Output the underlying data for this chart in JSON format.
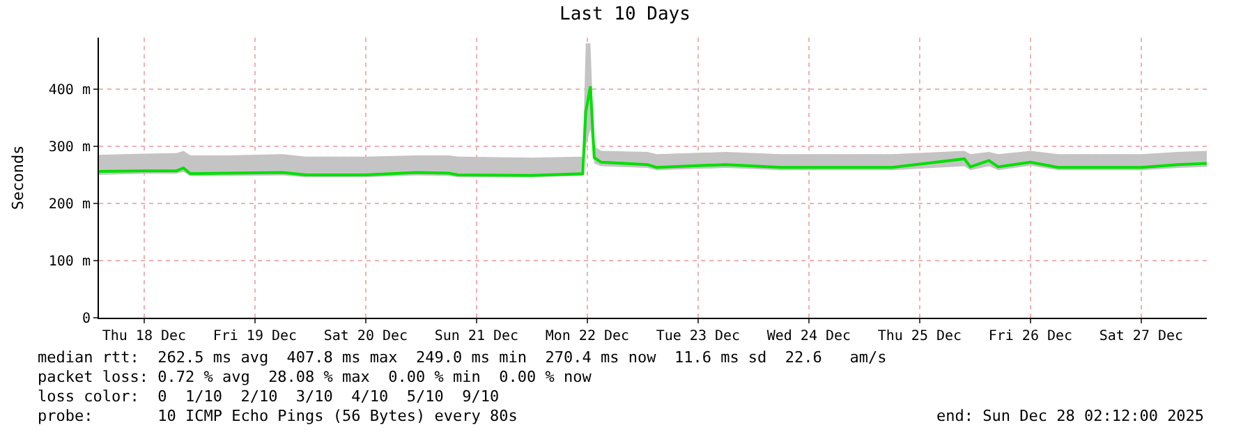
{
  "chart_data": {
    "type": "line",
    "title": "Last 10 Days",
    "ylabel": "Seconds",
    "x": [
      "2025-12-18T02:12",
      "2025-12-18T12:00",
      "2025-12-18T19:00",
      "2025-12-18T20:30",
      "2025-12-18T22:00",
      "2025-12-19T06:00",
      "2025-12-19T18:00",
      "2025-12-19T23:00",
      "2025-12-20T12:00",
      "2025-12-20T23:00",
      "2025-12-21T06:00",
      "2025-12-21T08:00",
      "2025-12-22T00:00",
      "2025-12-22T11:00",
      "2025-12-22T11:40",
      "2025-12-22T12:40",
      "2025-12-22T13:30",
      "2025-12-22T15:00",
      "2025-12-23T01:00",
      "2025-12-23T03:00",
      "2025-12-23T18:00",
      "2025-12-24T06:00",
      "2025-12-25T06:00",
      "2025-12-25T21:40",
      "2025-12-25T23:00",
      "2025-12-26T03:00",
      "2025-12-26T05:00",
      "2025-12-26T12:00",
      "2025-12-26T18:00",
      "2025-12-27T12:00",
      "2025-12-27T20:00",
      "2025-12-28T02:12"
    ],
    "series": [
      {
        "color": "#00e000",
        "values": [
          256,
          257,
          257,
          262,
          252,
          253,
          254,
          250,
          250,
          254,
          253,
          250,
          249,
          252,
          360,
          405,
          280,
          272,
          268,
          263,
          268,
          263,
          263,
          278,
          264,
          275,
          264,
          272,
          263,
          263,
          268,
          270
        ],
        "lower": [
          250,
          252,
          252,
          255,
          248,
          248,
          249,
          246,
          246,
          249,
          248,
          246,
          246,
          248,
          300,
          330,
          270,
          265,
          262,
          258,
          262,
          258,
          258,
          265,
          258,
          265,
          258,
          266,
          258,
          258,
          262,
          264
        ],
        "upper": [
          285,
          287,
          288,
          292,
          284,
          284,
          286,
          282,
          282,
          284,
          284,
          282,
          280,
          282,
          480,
          480,
          300,
          292,
          290,
          286,
          290,
          286,
          286,
          292,
          286,
          290,
          286,
          292,
          286,
          286,
          290,
          292
        ]
      }
    ],
    "ylim": [
      0,
      490
    ],
    "yticks": [
      0,
      {
        "value": 100,
        "label": "100 m"
      },
      {
        "value": 200,
        "label": "200 m"
      },
      {
        "value": 300,
        "label": "300 m"
      },
      {
        "value": 400,
        "label": "400 m"
      }
    ],
    "xlim": [
      "2025-12-18T02:12",
      "2025-12-28T02:12"
    ],
    "xticks": [
      {
        "value": "2025-12-18T12:00",
        "label": "Thu 18 Dec"
      },
      {
        "value": "2025-12-19T12:00",
        "label": "Fri 19 Dec"
      },
      {
        "value": "2025-12-20T12:00",
        "label": "Sat 20 Dec"
      },
      {
        "value": "2025-12-21T12:00",
        "label": "Sun 21 Dec"
      },
      {
        "value": "2025-12-22T12:00",
        "label": "Mon 22 Dec"
      },
      {
        "value": "2025-12-23T12:00",
        "label": "Tue 23 Dec"
      },
      {
        "value": "2025-12-24T12:00",
        "label": "Wed 24 Dec"
      },
      {
        "value": "2025-12-25T12:00",
        "label": "Thu 25 Dec"
      },
      {
        "value": "2025-12-26T12:00",
        "label": "Fri 26 Dec"
      },
      {
        "value": "2025-12-27T12:00",
        "label": "Sat 27 Dec"
      }
    ],
    "grid": true,
    "marker": "none",
    "line_style": "solid",
    "annotations": [
      "median rtt:  262.5 ms avg  407.8 ms max  249.0 ms min  270.4 ms now  11.6 ms sd  22.6   am/s",
      "packet loss: 0.72 % avg  28.08 % max  0.00 % min  0.00 % now",
      "loss color:  0  1/10  2/10  3/10  4/10  5/10  9/10",
      "probe:       10 ICMP Echo Pings (56 Bytes) every 80s",
      "end: Sun Dec 28 02:12:00 2025"
    ]
  }
}
